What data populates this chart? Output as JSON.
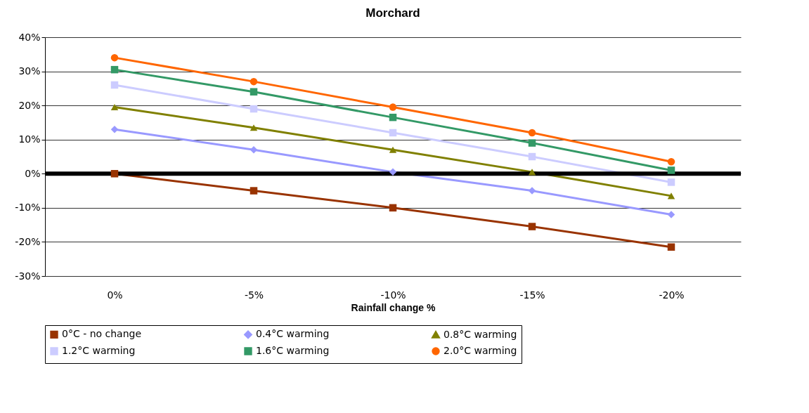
{
  "chart_data": {
    "type": "line",
    "title": "Morchard",
    "xlabel": "Rainfall change %",
    "categories": [
      "0%",
      "-5%",
      "-10%",
      "-15%",
      "-20%"
    ],
    "series": [
      {
        "name": "0°C - no change",
        "color": "#993300",
        "marker": "square",
        "values": [
          0,
          -5,
          -10,
          -15.5,
          -21.5
        ]
      },
      {
        "name": "0.4°C warming",
        "color": "#9999ff",
        "marker": "diamond",
        "values": [
          13,
          7,
          0.5,
          -5,
          -12
        ]
      },
      {
        "name": "0.8°C warming",
        "color": "#808000",
        "marker": "triangle",
        "values": [
          19.5,
          13.5,
          7,
          0.5,
          -6.5
        ]
      },
      {
        "name": "1.2°C warming",
        "color": "#ccccff",
        "marker": "square",
        "values": [
          26,
          19,
          12,
          5,
          -2.5
        ]
      },
      {
        "name": "1.6°C warming",
        "color": "#339966",
        "marker": "square",
        "values": [
          30.5,
          24,
          16.5,
          9,
          1
        ]
      },
      {
        "name": "2.0°C warming",
        "color": "#ff6600",
        "marker": "circle",
        "values": [
          34,
          27,
          19.5,
          12,
          3.5
        ]
      }
    ],
    "ylim": [
      -30,
      40
    ],
    "yticks": [
      {
        "value": -30,
        "label": "-30%"
      },
      {
        "value": -20,
        "label": "-20%"
      },
      {
        "value": -10,
        "label": "-10%"
      },
      {
        "value": 0,
        "label": "0%"
      },
      {
        "value": 10,
        "label": "10%"
      },
      {
        "value": 20,
        "label": "20%"
      },
      {
        "value": 30,
        "label": "30%"
      },
      {
        "value": 40,
        "label": "40%"
      }
    ],
    "ref_lines": [
      {
        "axis": "y",
        "value": 0,
        "color": "#000000"
      }
    ],
    "grid": "y",
    "legend": "bottom"
  }
}
